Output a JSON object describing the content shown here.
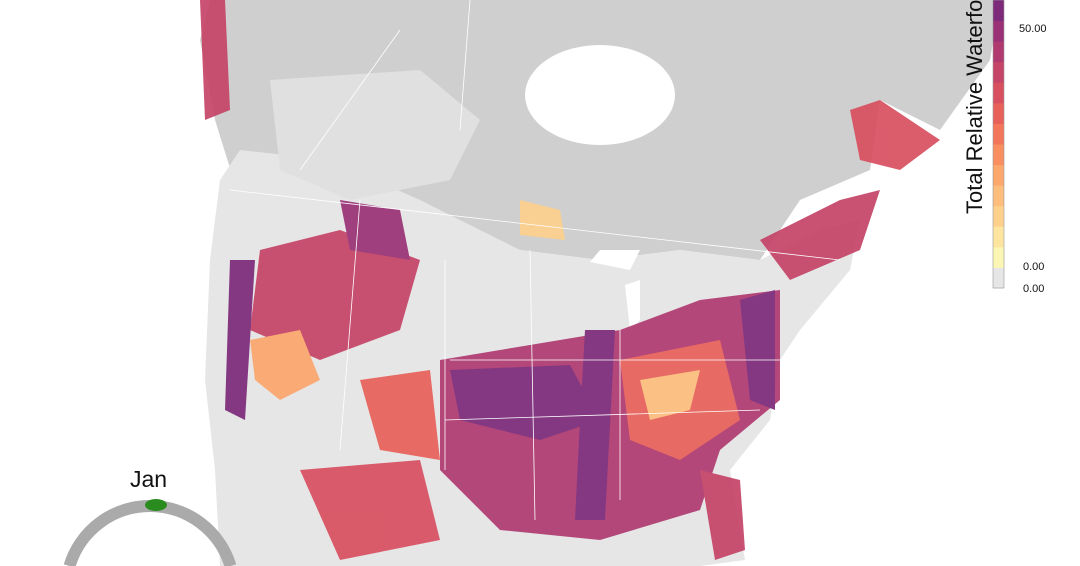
{
  "legend": {
    "title": "Total Relative Waterfo",
    "ticks": [
      "50.00",
      "0.00",
      "0.00"
    ],
    "colors": [
      "#e6e6e6",
      "#fcf6b5",
      "#fde5a0",
      "#fdd08c",
      "#fdbd7c",
      "#fca76c",
      "#f98e60",
      "#f3765a",
      "#e8605a",
      "#d84f60",
      "#c54468",
      "#b03a70",
      "#9a3176",
      "#7d2a7a"
    ]
  },
  "map": {
    "canada_color": "#cfcfcf",
    "us_color": "#e6e6e6",
    "water_color": "#ffffff"
  },
  "season_dial": {
    "month": "Jan",
    "track_color": "#aaaaaa",
    "marker_color": "#2a8c1f"
  }
}
